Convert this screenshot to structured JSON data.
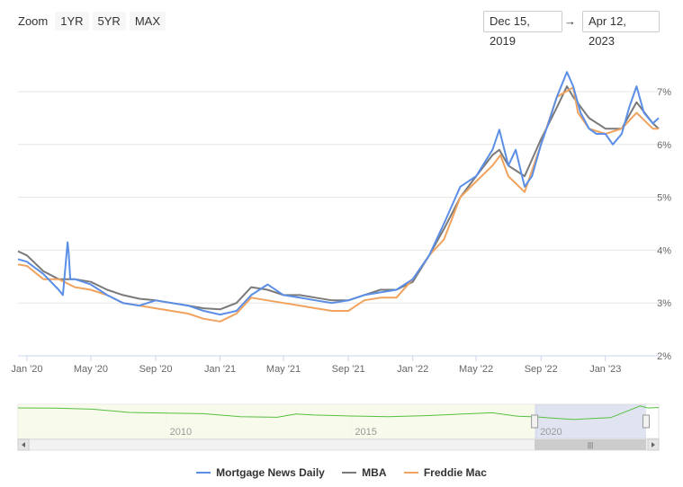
{
  "zoom": {
    "label": "Zoom",
    "buttons": [
      "1YR",
      "5YR",
      "MAX"
    ]
  },
  "range": {
    "from": "Dec 15, 2019",
    "arrow": "→",
    "to": "Apr 12, 2023"
  },
  "navigator": {
    "labels": [
      "2010",
      "2015",
      "2020"
    ],
    "handle_glyph": "|||"
  },
  "colors": {
    "mnd": "#5b8ee6",
    "mba": "#7a7a7a",
    "freddie": "#f0a35e",
    "grid": "#e6e6e6",
    "navigator_line": "#55c03f"
  },
  "chart_data": {
    "type": "line",
    "x_tick_labels": [
      "Jan '20",
      "May '20",
      "Sep '20",
      "Jan '21",
      "May '21",
      "Sep '21",
      "Jan '22",
      "May '22",
      "Sep '22",
      "Jan '23"
    ],
    "y_tick_labels": [
      "2%",
      "3%",
      "4%",
      "5%",
      "6%",
      "7%"
    ],
    "ylim": [
      2,
      7.6
    ],
    "xlim": [
      "2019-12-15",
      "2023-04-12"
    ],
    "grid": true,
    "legend_position": "bottom-center",
    "series": [
      {
        "name": "Mortgage News Daily",
        "color": "#5b8ee6",
        "x": [
          "2019-12-15",
          "2020-01-01",
          "2020-02-01",
          "2020-03-01",
          "2020-03-09",
          "2020-03-18",
          "2020-03-20",
          "2020-03-23",
          "2020-04-01",
          "2020-05-01",
          "2020-06-01",
          "2020-07-01",
          "2020-08-01",
          "2020-09-01",
          "2020-10-01",
          "2020-11-01",
          "2020-12-01",
          "2021-01-01",
          "2021-02-01",
          "2021-03-01",
          "2021-04-01",
          "2021-05-01",
          "2021-06-01",
          "2021-07-01",
          "2021-08-01",
          "2021-09-01",
          "2021-10-01",
          "2021-11-01",
          "2021-12-01",
          "2022-01-01",
          "2022-02-01",
          "2022-03-01",
          "2022-04-01",
          "2022-05-01",
          "2022-06-01",
          "2022-06-14",
          "2022-07-01",
          "2022-07-15",
          "2022-08-01",
          "2022-08-15",
          "2022-09-01",
          "2022-09-15",
          "2022-10-01",
          "2022-10-20",
          "2022-11-01",
          "2022-11-15",
          "2022-12-01",
          "2022-12-15",
          "2023-01-01",
          "2023-01-15",
          "2023-02-01",
          "2023-02-15",
          "2023-03-01",
          "2023-03-15",
          "2023-04-01",
          "2023-04-12"
        ],
        "y": [
          3.83,
          3.78,
          3.55,
          3.25,
          3.15,
          4.15,
          3.95,
          3.45,
          3.45,
          3.35,
          3.15,
          3.0,
          2.95,
          3.05,
          3.0,
          2.95,
          2.85,
          2.78,
          2.85,
          3.15,
          3.35,
          3.15,
          3.1,
          3.05,
          3.0,
          3.05,
          3.15,
          3.2,
          3.25,
          3.45,
          3.9,
          4.5,
          5.2,
          5.4,
          5.9,
          6.28,
          5.6,
          5.9,
          5.2,
          5.4,
          6.0,
          6.4,
          6.9,
          7.37,
          7.1,
          6.6,
          6.3,
          6.2,
          6.2,
          6.0,
          6.2,
          6.7,
          7.1,
          6.6,
          6.4,
          6.5
        ]
      },
      {
        "name": "MBA",
        "color": "#7a7a7a",
        "x": [
          "2019-12-15",
          "2020-01-01",
          "2020-02-01",
          "2020-03-01",
          "2020-04-01",
          "2020-05-01",
          "2020-06-01",
          "2020-07-01",
          "2020-08-01",
          "2020-09-01",
          "2020-10-01",
          "2020-11-01",
          "2020-12-01",
          "2021-01-01",
          "2021-02-01",
          "2021-03-01",
          "2021-04-01",
          "2021-05-01",
          "2021-06-01",
          "2021-07-01",
          "2021-08-01",
          "2021-09-01",
          "2021-10-01",
          "2021-11-01",
          "2021-12-01",
          "2022-01-01",
          "2022-02-01",
          "2022-03-01",
          "2022-04-01",
          "2022-05-01",
          "2022-06-01",
          "2022-06-14",
          "2022-07-01",
          "2022-08-01",
          "2022-09-01",
          "2022-10-01",
          "2022-10-20",
          "2022-11-01",
          "2022-12-01",
          "2023-01-01",
          "2023-02-01",
          "2023-03-01",
          "2023-04-01",
          "2023-04-12"
        ],
        "y": [
          3.98,
          3.9,
          3.6,
          3.45,
          3.45,
          3.4,
          3.25,
          3.15,
          3.08,
          3.05,
          3.0,
          2.95,
          2.9,
          2.88,
          3.0,
          3.3,
          3.25,
          3.15,
          3.15,
          3.1,
          3.05,
          3.05,
          3.15,
          3.25,
          3.25,
          3.4,
          3.9,
          4.4,
          5.0,
          5.4,
          5.8,
          5.9,
          5.6,
          5.4,
          6.1,
          6.7,
          7.1,
          6.9,
          6.5,
          6.3,
          6.3,
          6.8,
          6.4,
          6.3
        ]
      },
      {
        "name": "Freddie Mac",
        "color": "#f0a35e",
        "x": [
          "2019-12-15",
          "2020-01-01",
          "2020-02-01",
          "2020-03-01",
          "2020-04-01",
          "2020-05-01",
          "2020-06-01",
          "2020-07-01",
          "2020-08-01",
          "2020-09-01",
          "2020-10-01",
          "2020-11-01",
          "2020-12-01",
          "2021-01-01",
          "2021-02-01",
          "2021-03-01",
          "2021-04-01",
          "2021-05-01",
          "2021-06-01",
          "2021-07-01",
          "2021-08-01",
          "2021-09-01",
          "2021-10-01",
          "2021-11-01",
          "2021-12-01",
          "2022-01-01",
          "2022-02-01",
          "2022-03-01",
          "2022-04-01",
          "2022-05-01",
          "2022-06-01",
          "2022-06-16",
          "2022-07-01",
          "2022-08-01",
          "2022-09-01",
          "2022-10-01",
          "2022-11-01",
          "2022-11-10",
          "2022-12-01",
          "2023-01-01",
          "2023-02-01",
          "2023-03-01",
          "2023-04-01",
          "2023-04-12"
        ],
        "y": [
          3.73,
          3.7,
          3.45,
          3.45,
          3.3,
          3.25,
          3.15,
          3.0,
          2.95,
          2.9,
          2.85,
          2.8,
          2.7,
          2.65,
          2.8,
          3.1,
          3.05,
          3.0,
          2.95,
          2.9,
          2.85,
          2.85,
          3.05,
          3.1,
          3.1,
          3.45,
          3.9,
          4.2,
          5.0,
          5.3,
          5.6,
          5.8,
          5.4,
          5.1,
          6.0,
          6.9,
          7.08,
          6.6,
          6.3,
          6.2,
          6.3,
          6.6,
          6.3,
          6.3
        ]
      }
    ]
  },
  "navigator_data": {
    "x_years": [
      2006.0,
      2007.0,
      2008.0,
      2009.0,
      2010.0,
      2011.0,
      2012.0,
      2013.0,
      2013.5,
      2014.0,
      2015.0,
      2016.0,
      2017.0,
      2018.0,
      2018.8,
      2019.5,
      2020.0,
      2020.5,
      2021.0,
      2021.5,
      2022.0,
      2022.4,
      2022.8,
      2023.0,
      2023.3
    ],
    "y": [
      6.4,
      6.3,
      6.0,
      5.0,
      4.8,
      4.6,
      3.7,
      3.5,
      4.5,
      4.2,
      3.9,
      3.7,
      4.0,
      4.5,
      4.9,
      3.8,
      3.6,
      3.2,
      2.8,
      3.1,
      3.4,
      5.2,
      7.0,
      6.4,
      6.5
    ],
    "selected_range_years": [
      2019.95,
      2023.3
    ]
  }
}
